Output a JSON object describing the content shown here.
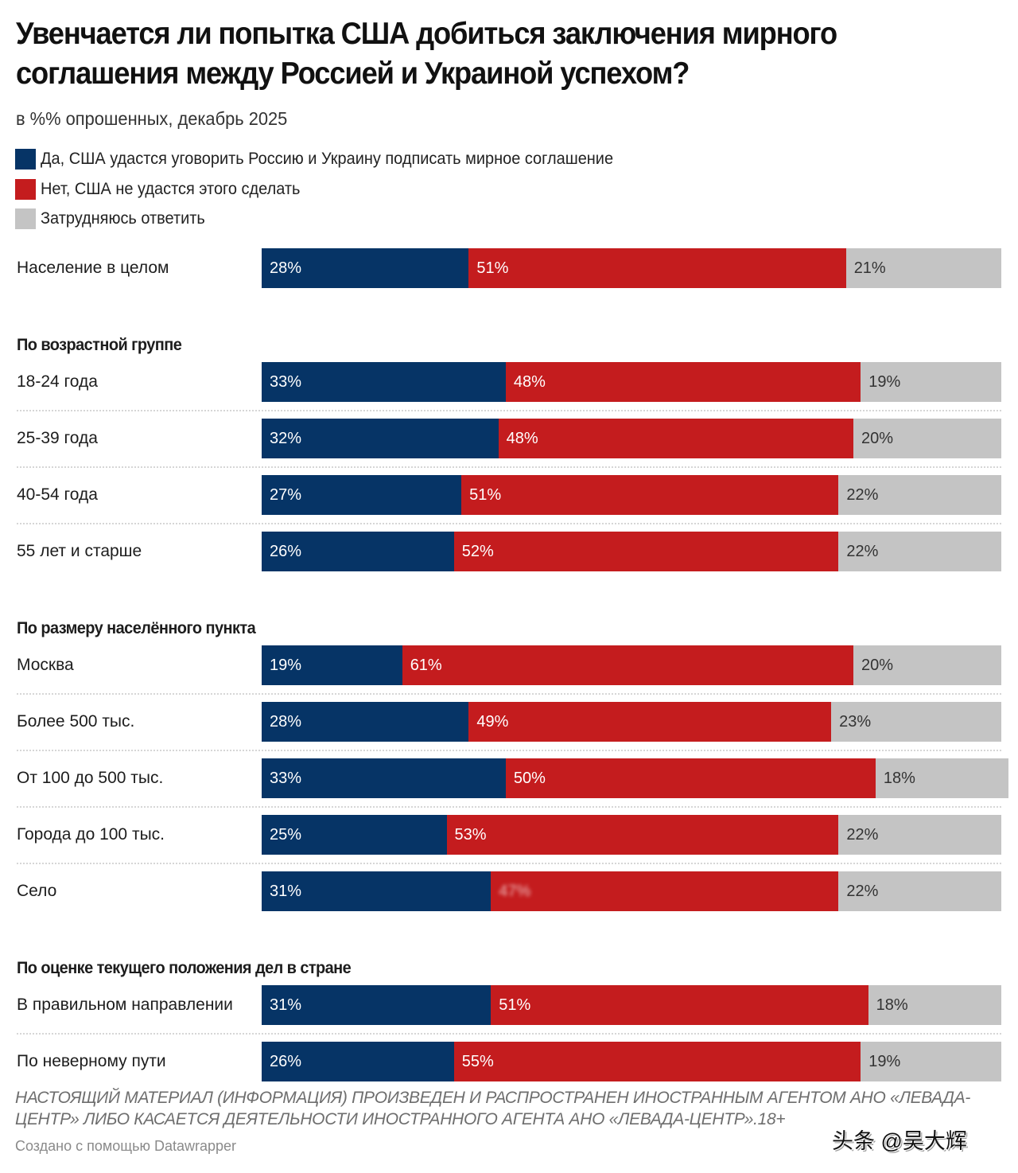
{
  "header": {
    "title": "Увенчается ли попытка США добиться заключения мирного соглашения между Россией и Украиной успехом?",
    "subtitle": "в %% опрошенных, декабрь 2025"
  },
  "legend": [
    {
      "label": "Да, США удастся уговорить Россию и Украину подписать мирное соглашение",
      "color": "#063466"
    },
    {
      "label": "Нет, США не удастся этого сделать",
      "color": "#c41c1e"
    },
    {
      "label": "Затрудняюсь ответить",
      "color": "#c4c4c4"
    }
  ],
  "colors": {
    "yes": "#063466",
    "no": "#c41c1e",
    "dont_know": "#c4c4c4",
    "label_on_dark": "#ffffff",
    "label_on_gray": "#333333"
  },
  "chart_data": {
    "type": "bar",
    "orientation": "horizontal",
    "stacked": true,
    "normalized": true,
    "title": "Увенчается ли попытка США добиться заключения мирного соглашения между Россией и Украиной успехом?",
    "subtitle": "в %% опрошенных, декабрь 2025",
    "xlim": [
      0,
      100
    ],
    "unit": "%",
    "series": [
      {
        "name": "Да, США удастся уговорить Россию и Украину подписать мирное соглашение",
        "key": "yes"
      },
      {
        "name": "Нет, США не удастся этого сделать",
        "key": "no"
      },
      {
        "name": "Затрудняюсь ответить",
        "key": "dont_know"
      }
    ],
    "groups": [
      {
        "title": "",
        "rows": [
          {
            "label": "Население в целом",
            "yes": 28,
            "no": 51,
            "dont_know": 21
          }
        ]
      },
      {
        "title": "По возрастной группе",
        "rows": [
          {
            "label": "18-24 года",
            "yes": 33,
            "no": 48,
            "dont_know": 19
          },
          {
            "label": "25-39 года",
            "yes": 32,
            "no": 48,
            "dont_know": 20
          },
          {
            "label": "40-54 года",
            "yes": 27,
            "no": 51,
            "dont_know": 22
          },
          {
            "label": "55 лет и старше",
            "yes": 26,
            "no": 52,
            "dont_know": 22
          }
        ]
      },
      {
        "title": "По размеру населённого пункта",
        "rows": [
          {
            "label": "Москва",
            "yes": 19,
            "no": 61,
            "dont_know": 20
          },
          {
            "label": "Более 500 тыс.",
            "yes": 28,
            "no": 49,
            "dont_know": 23
          },
          {
            "label": "От 100 до 500 тыс.",
            "yes": 33,
            "no": 50,
            "dont_know": 18
          },
          {
            "label": "Города до 100 тыс.",
            "yes": 25,
            "no": 53,
            "dont_know": 22
          },
          {
            "label": "Село",
            "yes": 31,
            "no": 47,
            "dont_know": 22,
            "no_label_obscured": true
          }
        ]
      },
      {
        "title": "По оценке текущего положения дел в стране",
        "rows": [
          {
            "label": "В правильном направлении",
            "yes": 31,
            "no": 51,
            "dont_know": 18
          },
          {
            "label": "По неверному пути",
            "yes": 26,
            "no": 55,
            "dont_know": 19
          }
        ]
      }
    ]
  },
  "footer": {
    "notes": "НАСТОЯЩИЙ МАТЕРИАЛ (ИНФОРМАЦИЯ) ПРОИЗВЕДЕН И РАСПРОСТРАНЕН ИНОСТРАННЫМ АГЕНТОМ АНО «ЛЕВАДА-ЦЕНТР» ЛИБО КАСАЕТСЯ ДЕЯТЕЛЬНОСТИ ИНОСТРАННОГО АГЕНТА АНО «ЛЕВАДА-ЦЕНТР».18+",
    "byline": "Создано с помощью Datawrapper",
    "watermark": "头条 @吴大辉"
  }
}
